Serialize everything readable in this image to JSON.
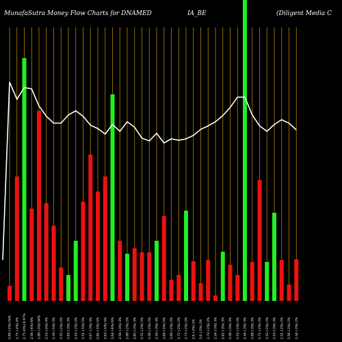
{
  "chart_data": {
    "type": "bar",
    "title_parts": [
      "MunafaSutra  Money Flow  Charts for DNAMED",
      "IA_BE",
      "(Diligent Media  C"
    ],
    "colors": {
      "background": "#000000",
      "up": "#22ee22",
      "down": "#ee1111",
      "grid": "#b8860b",
      "line": "#ffffff",
      "text": "#ffffff"
    },
    "ylim": [
      0,
      440
    ],
    "line_ylim": [
      0,
      440
    ],
    "bars": [
      {
        "label": "0.89 (-0%) 04%",
        "value": 22,
        "dir": "down"
      },
      {
        "label": "2.75 (-4%) 4%",
        "value": 182,
        "dir": "down"
      },
      {
        "label": "2.75 (0%) 8.97%",
        "value": 355,
        "dir": "up"
      },
      {
        "label": "2.56 (-6%) 6%",
        "value": 135,
        "dir": "down"
      },
      {
        "label": "2.88 (-9%) 94%",
        "value": 278,
        "dir": "down"
      },
      {
        "label": "2.53 (-4%) 4%",
        "value": 143,
        "dir": "down"
      },
      {
        "label": "2.39 (-5%) 5%",
        "value": 110,
        "dir": "down"
      },
      {
        "label": "2.55 (-2%) 2%",
        "value": 49,
        "dir": "down"
      },
      {
        "label": "2.69 (-3%) 3%",
        "value": 38,
        "dir": "up"
      },
      {
        "label": "2.43 (-2%) 2%",
        "value": 88,
        "dir": "up"
      },
      {
        "label": "2.51 (-5%) 5%",
        "value": 145,
        "dir": "down"
      },
      {
        "label": "2.67 (-3%) 3%",
        "value": 214,
        "dir": "down"
      },
      {
        "label": "2.60 (-5%) 5%",
        "value": 160,
        "dir": "down"
      },
      {
        "label": "2.63 (-5%) 5%",
        "value": 182,
        "dir": "down"
      },
      {
        "label": "2.64 (-6%) 6%",
        "value": 302,
        "dir": "up"
      },
      {
        "label": "2.56 (-3%) 3%",
        "value": 88,
        "dir": "down"
      },
      {
        "label": "2.68 (-2%) 2%",
        "value": 69,
        "dir": "up"
      },
      {
        "label": "2.60 (-3%) 3%",
        "value": 77,
        "dir": "down"
      },
      {
        "label": "2.52 (-2%) 2%",
        "value": 71,
        "dir": "down"
      },
      {
        "label": "2.56 (-2%) 2%",
        "value": 71,
        "dir": "down"
      },
      {
        "label": "2.59 (-3%) 3%",
        "value": 88,
        "dir": "up"
      },
      {
        "label": "2.68 (-5%) 5%",
        "value": 124,
        "dir": "down"
      },
      {
        "label": "2.68 (-2%) 2%",
        "value": 31,
        "dir": "down"
      },
      {
        "label": "2.72 (-2%) 2%",
        "value": 38,
        "dir": "down"
      },
      {
        "label": "2.73 (-2%) 2%",
        "value": 132,
        "dir": "up"
      },
      {
        "label": "2.6 (-2%) 2%",
        "value": 58,
        "dir": "down"
      },
      {
        "label": "2.6 (-2%) 2%",
        "value": 26,
        "dir": "down"
      },
      {
        "label": "2.74 (-2%) 2%",
        "value": 60,
        "dir": "down"
      },
      {
        "label": "2.54 (-3%) 3%",
        "value": 8,
        "dir": "down"
      },
      {
        "label": "2.62 (-3%) 3%",
        "value": 72,
        "dir": "up"
      },
      {
        "label": "2.48 (-3%) 3%",
        "value": 53,
        "dir": "down"
      },
      {
        "label": "2.53 (-2%) 2%",
        "value": 38,
        "dir": "down"
      },
      {
        "label": "2.44 (-3%) 3%",
        "value": 440,
        "dir": "up"
      },
      {
        "label": "2.68 (-3%) 3%",
        "value": 57,
        "dir": "down"
      },
      {
        "label": "2.71 (-2%) 2%",
        "value": 177,
        "dir": "down"
      },
      {
        "label": "2.52 (-2%) 2%",
        "value": 57,
        "dir": "up"
      },
      {
        "label": "2.53 (-3%) 3%",
        "value": 129,
        "dir": "up"
      },
      {
        "label": "2.51 (-2%) 2%",
        "value": 60,
        "dir": "down"
      },
      {
        "label": "2.56 (-2%) 2%",
        "value": 24,
        "dir": "down"
      },
      {
        "label": "2.44 (-2%) 2%",
        "value": 61,
        "dir": "down"
      }
    ],
    "line_values": [
      320,
      295,
      312,
      310,
      285,
      270,
      260,
      260,
      272,
      278,
      270,
      257,
      252,
      244,
      258,
      248,
      262,
      254,
      238,
      234,
      245,
      231,
      237,
      235,
      237,
      242,
      251,
      256,
      262,
      271,
      283,
      298,
      298,
      272,
      256,
      248,
      258,
      265,
      260,
      250
    ]
  }
}
